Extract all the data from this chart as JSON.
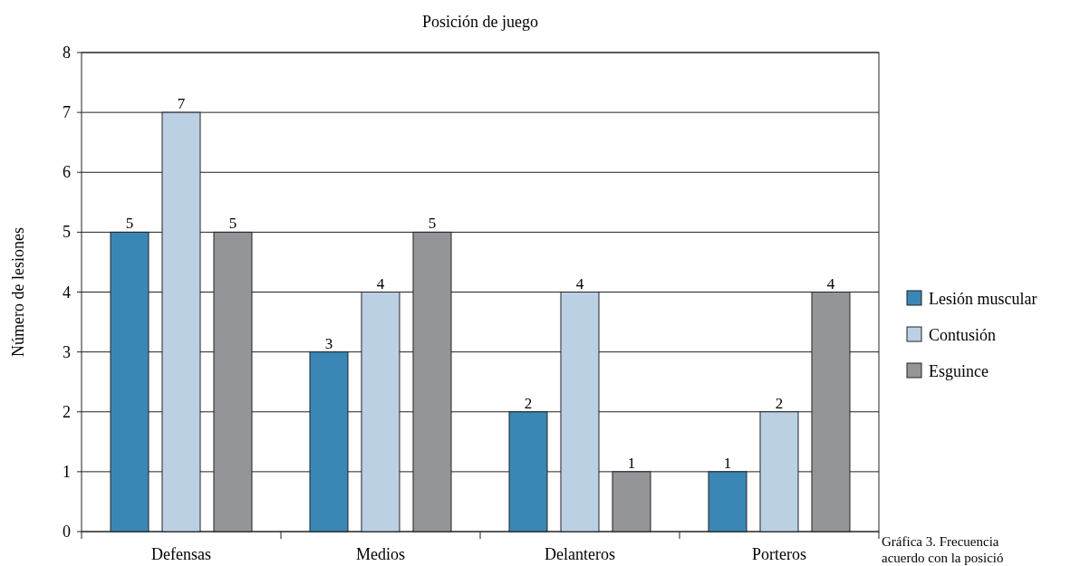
{
  "chart_data": {
    "type": "bar",
    "title": "Posición de juego",
    "ylabel": "Número de lesiones",
    "categories": [
      "Defensas",
      "Medios",
      "Delanteros",
      "Porteros"
    ],
    "series": [
      {
        "name": "Lesión muscular",
        "color": "#3a87b5",
        "values": [
          5,
          3,
          2,
          1
        ]
      },
      {
        "name": "Contusión",
        "color": "#bcd0e4",
        "values": [
          7,
          4,
          4,
          2
        ]
      },
      {
        "name": "Esguince",
        "color": "#939598",
        "values": [
          5,
          5,
          1,
          4
        ]
      }
    ],
    "ylim": [
      0,
      8
    ],
    "yticks": [
      0,
      1,
      2,
      3,
      4,
      5,
      6,
      7,
      8
    ],
    "grid": "y",
    "legend": "right",
    "data_labels": true,
    "annotations": [
      "Gráfica 3. Frecuencia",
      "acuerdo con la posició"
    ]
  }
}
